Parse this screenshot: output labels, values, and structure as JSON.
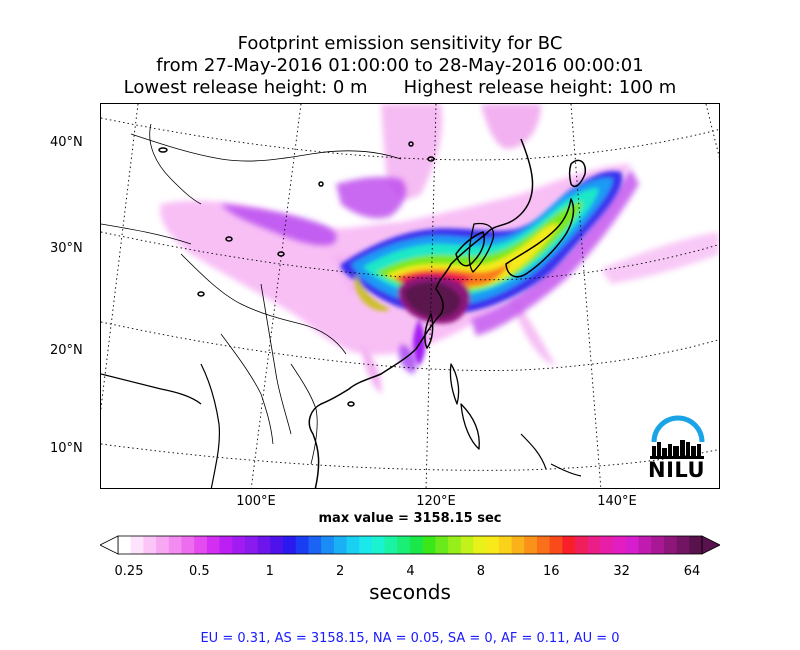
{
  "title": {
    "line1": "Footprint emission sensitivity for BC",
    "line2": "from 27-May-2016 01:00:00 to 28-May-2016 00:00:01",
    "release_low": "Lowest release height: 0 m",
    "release_high": "Highest release height: 100 m"
  },
  "map": {
    "lat_labels": [
      "40°N",
      "30°N",
      "20°N",
      "10°N"
    ],
    "lon_labels": [
      "100°E",
      "120°E",
      "140°E"
    ],
    "logo_text": "NILU"
  },
  "max_value_text": "max value = 3158.15 sec",
  "colorbar": {
    "ticks": [
      "0.25",
      "0.5",
      "1",
      "2",
      "4",
      "8",
      "16",
      "32",
      "64"
    ],
    "label": "seconds",
    "colors": [
      "#ffffff",
      "#fde3fb",
      "#fbc6f7",
      "#f7a8f3",
      "#f38cf0",
      "#ee6cee",
      "#e44cf0",
      "#d22ff2",
      "#bb1ff3",
      "#a21cf2",
      "#8a1aee",
      "#6e15ec",
      "#4d13ea",
      "#2a1aee",
      "#1a3cf2",
      "#1a63f5",
      "#1a8cf5",
      "#1ab0f5",
      "#1ad0f2",
      "#1ae8ea",
      "#1af2d0",
      "#1af2a4",
      "#1aee74",
      "#1ae84a",
      "#3ae81a",
      "#6aea1a",
      "#96ee1a",
      "#c2f21a",
      "#e8f21a",
      "#f8ea1a",
      "#fad21a",
      "#fab21a",
      "#fa921a",
      "#fa701a",
      "#fa4a1a",
      "#f81e2a",
      "#f01e5a",
      "#ea1e86",
      "#e61ea8",
      "#e21ec2",
      "#d61ece",
      "#c01ab0",
      "#a81894",
      "#8e167a",
      "#721462",
      "#5a124e"
    ]
  },
  "regions_text": "EU = 0.31,  AS = 3158.15,  NA = 0.05,  SA = 0,  AF = 0.11,  AU = 0"
}
